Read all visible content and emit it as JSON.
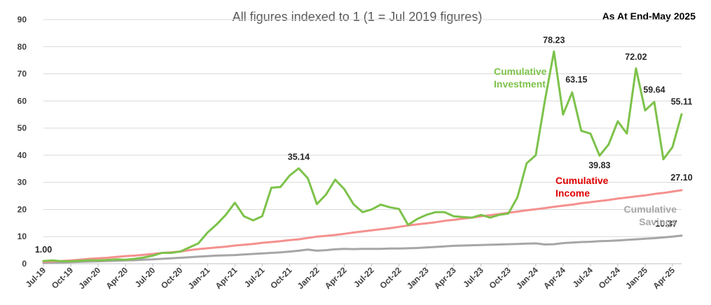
{
  "chart_data": {
    "type": "line",
    "title": "All figures indexed to 1 (1 = Jul 2019 figures)",
    "subtitle": "As At End-May 2025",
    "ylim": [
      0,
      90
    ],
    "yticks": [
      "0",
      "10",
      "20",
      "30",
      "40",
      "50",
      "60",
      "70",
      "80",
      "90"
    ],
    "grid": true,
    "x": [
      "Jul-19",
      "Aug-19",
      "Sep-19",
      "Oct-19",
      "Nov-19",
      "Dec-19",
      "Jan-20",
      "Feb-20",
      "Mar-20",
      "Apr-20",
      "May-20",
      "Jun-20",
      "Jul-20",
      "Aug-20",
      "Sep-20",
      "Oct-20",
      "Nov-20",
      "Dec-20",
      "Jan-21",
      "Feb-21",
      "Mar-21",
      "Apr-21",
      "May-21",
      "Jun-21",
      "Jul-21",
      "Aug-21",
      "Sep-21",
      "Oct-21",
      "Nov-21",
      "Dec-21",
      "Jan-22",
      "Feb-22",
      "Mar-22",
      "Apr-22",
      "May-22",
      "Jun-22",
      "Jul-22",
      "Aug-22",
      "Sep-22",
      "Oct-22",
      "Nov-22",
      "Dec-22",
      "Jan-23",
      "Feb-23",
      "Mar-23",
      "Apr-23",
      "May-23",
      "Jun-23",
      "Jul-23",
      "Aug-23",
      "Sep-23",
      "Oct-23",
      "Nov-23",
      "Dec-23",
      "Jan-24",
      "Feb-24",
      "Mar-24",
      "Apr-24",
      "May-24",
      "Jun-24",
      "Jul-24",
      "Aug-24",
      "Sep-24",
      "Oct-24",
      "Nov-24",
      "Dec-24",
      "Jan-25",
      "Feb-25",
      "Mar-25",
      "Apr-25",
      "May-25"
    ],
    "xtick_labels": [
      "Jul-19",
      "Oct-19",
      "Jan-20",
      "Apr-20",
      "Jul-20",
      "Oct-20",
      "Jan-21",
      "Apr-21",
      "Jul-21",
      "Oct-21",
      "Jan-22",
      "Apr-22",
      "Jul-22",
      "Oct-22",
      "Jan-23",
      "Apr-23",
      "Jul-23",
      "Oct-23",
      "Jan-24",
      "Apr-24",
      "Jul-24",
      "Oct-24",
      "Jan-25",
      "Apr-25"
    ],
    "series": [
      {
        "name": "Cumulative Investment",
        "label_lines": [
          "Cumulative",
          "Investment"
        ],
        "color": "#7dc24b",
        "values": [
          1.0,
          1.2,
          0.9,
          0.9,
          1.1,
          1.3,
          1.2,
          1.4,
          1.6,
          1.5,
          1.8,
          2.3,
          3.0,
          4.0,
          4.0,
          4.5,
          6.0,
          7.5,
          11.5,
          14.5,
          18.0,
          22.5,
          17.5,
          16.0,
          17.5,
          28.0,
          28.3,
          32.5,
          35.14,
          31.5,
          22.0,
          25.5,
          31.0,
          27.5,
          22.0,
          19.0,
          20.0,
          21.8,
          20.8,
          20.2,
          14.3,
          16.5,
          18.0,
          19.0,
          19.0,
          17.5,
          17.2,
          17.0,
          18.0,
          17.0,
          18.0,
          18.5,
          24.5,
          37.0,
          40.0,
          60.0,
          78.23,
          55.0,
          63.15,
          49.0,
          48.0,
          39.83,
          44.0,
          52.5,
          48.0,
          72.02,
          56.5,
          59.64,
          38.5,
          43.0,
          55.11
        ]
      },
      {
        "name": "Cumulative Income",
        "label_lines": [
          "Cumulative",
          "Income"
        ],
        "color": "#f4908e",
        "values": [
          0.7,
          0.9,
          1.0,
          1.2,
          1.5,
          1.8,
          2.0,
          2.2,
          2.5,
          2.8,
          3.0,
          3.3,
          3.6,
          4.0,
          4.2,
          4.5,
          5.0,
          5.4,
          5.7,
          6.0,
          6.3,
          6.7,
          7.0,
          7.3,
          7.7,
          8.0,
          8.3,
          8.7,
          9.0,
          9.5,
          10.0,
          10.3,
          10.6,
          11.0,
          11.5,
          11.9,
          12.3,
          12.7,
          13.1,
          13.6,
          14.1,
          14.5,
          14.9,
          15.3,
          15.8,
          16.2,
          16.6,
          17.0,
          17.5,
          17.9,
          18.3,
          18.8,
          19.2,
          19.7,
          20.1,
          20.5,
          21.0,
          21.4,
          21.8,
          22.3,
          22.7,
          23.1,
          23.5,
          24.0,
          24.4,
          24.8,
          25.2,
          25.7,
          26.1,
          26.6,
          27.1
        ]
      },
      {
        "name": "Cumulative Savings",
        "label_lines": [
          "Cumulative",
          "Savings"
        ],
        "color": "#a6a6a6",
        "values": [
          0.3,
          0.4,
          0.5,
          0.6,
          0.7,
          0.8,
          0.9,
          1.0,
          1.1,
          1.2,
          1.3,
          1.5,
          1.6,
          1.8,
          2.0,
          2.2,
          2.4,
          2.6,
          2.8,
          3.0,
          3.1,
          3.2,
          3.4,
          3.6,
          3.8,
          4.0,
          4.2,
          4.5,
          4.8,
          5.2,
          4.8,
          5.0,
          5.3,
          5.5,
          5.4,
          5.5,
          5.5,
          5.5,
          5.6,
          5.6,
          5.7,
          5.8,
          6.0,
          6.2,
          6.4,
          6.6,
          6.7,
          6.8,
          6.9,
          7.0,
          7.1,
          7.2,
          7.3,
          7.4,
          7.5,
          7.1,
          7.2,
          7.6,
          7.8,
          8.0,
          8.1,
          8.3,
          8.4,
          8.6,
          8.8,
          9.0,
          9.2,
          9.4,
          9.7,
          10.0,
          10.37
        ]
      }
    ],
    "data_labels": [
      {
        "text": "1.00",
        "series": 0,
        "index": 0
      },
      {
        "text": "35.14",
        "series": 0,
        "index": 28
      },
      {
        "text": "78.23",
        "series": 0,
        "index": 56
      },
      {
        "text": "63.15",
        "series": 0,
        "index": 58
      },
      {
        "text": "39.83",
        "series": 0,
        "index": 61
      },
      {
        "text": "72.02",
        "series": 0,
        "index": 65
      },
      {
        "text": "59.64",
        "series": 0,
        "index": 67
      },
      {
        "text": "55.11",
        "series": 0,
        "index": 70
      },
      {
        "text": "27.10",
        "series": 1,
        "index": 70
      },
      {
        "text": "10.37",
        "series": 2,
        "index": 70
      }
    ],
    "series_label_colors": [
      "#7dc24b",
      "#e00000",
      "#a6a6a6"
    ]
  }
}
